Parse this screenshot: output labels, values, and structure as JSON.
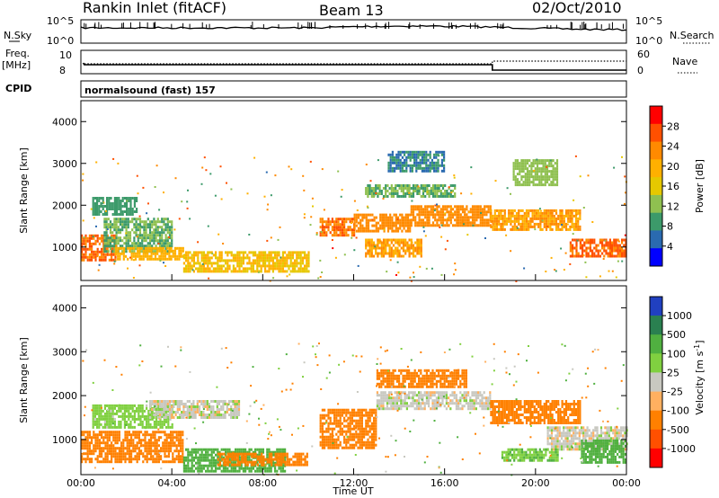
{
  "header": {
    "station": "Rankin Inlet (fitACF)",
    "beam": "Beam 13",
    "date": "02/Oct/2010"
  },
  "strip": {
    "nsky_label": "N.Sky",
    "nsky_ticks": [
      "10^5",
      "10^0"
    ],
    "nsearch_label": "N.Search",
    "nsearch_ticks": [
      "10^5",
      "10^0"
    ],
    "freq_label": "Freq.",
    "freq_unit": "[MHz]",
    "freq_ticks": [
      "10",
      "8"
    ],
    "nave_label": "Nave",
    "nave_ticks": [
      "60",
      "0"
    ],
    "cpid_label": "CPID",
    "cpid_value": "normalsound (fast) 157"
  },
  "chart_data": [
    {
      "type": "heatmap",
      "panel": "power",
      "ylabel": "Slant Range [km]",
      "xlabel": "",
      "colorbar_label": "Power [dB]",
      "ylim": [
        200,
        4500
      ],
      "yticks": [
        "1000",
        "2000",
        "3000",
        "4000"
      ],
      "colorbar_ticks": [
        "28",
        "24",
        "20",
        "16",
        "12",
        "8",
        "4"
      ],
      "colorscale": [
        "#ff0000",
        "#ff5000",
        "#ff8a00",
        "#ffb000",
        "#e6c800",
        "#8fc050",
        "#3c9a6a",
        "#2a6ab0",
        "#0000ff"
      ],
      "bands": [
        {
          "t": [
            0.0,
            1.5
          ],
          "r": [
            700,
            1300
          ],
          "level": 26
        },
        {
          "t": [
            1.0,
            4.0
          ],
          "r": [
            900,
            1700
          ],
          "level": 10
        },
        {
          "t": [
            1.5,
            4.5
          ],
          "r": [
            700,
            1000
          ],
          "level": 20
        },
        {
          "t": [
            4.5,
            10.0
          ],
          "r": [
            400,
            900
          ],
          "level": 18
        },
        {
          "t": [
            0.5,
            2.5
          ],
          "r": [
            1800,
            2200
          ],
          "level": 8
        },
        {
          "t": [
            10.5,
            12.0
          ],
          "r": [
            1300,
            1700
          ],
          "level": 26
        },
        {
          "t": [
            12.0,
            14.5
          ],
          "r": [
            1400,
            1800
          ],
          "level": 24
        },
        {
          "t": [
            12.5,
            15.0
          ],
          "r": [
            800,
            1200
          ],
          "level": 22
        },
        {
          "t": [
            14.5,
            18.0
          ],
          "r": [
            1500,
            2000
          ],
          "level": 24
        },
        {
          "t": [
            12.5,
            16.5
          ],
          "r": [
            2200,
            2500
          ],
          "level": 10
        },
        {
          "t": [
            18.0,
            22.0
          ],
          "r": [
            1400,
            1900
          ],
          "level": 22
        },
        {
          "t": [
            21.5,
            24.0
          ],
          "r": [
            800,
            1200
          ],
          "level": 27
        },
        {
          "t": [
            19.0,
            21.0
          ],
          "r": [
            2500,
            3100
          ],
          "level": 12
        },
        {
          "t": [
            13.5,
            16.0
          ],
          "r": [
            2800,
            3300
          ],
          "level": 6
        }
      ]
    },
    {
      "type": "heatmap",
      "panel": "velocity",
      "ylabel": "Slant Range [km]",
      "xlabel": "Time UT",
      "colorbar_label": "Velocity [m s",
      "colorbar_label_sup": "-1",
      "colorbar_label_end": "]",
      "ylim": [
        200,
        4500
      ],
      "yticks": [
        "1000",
        "2000",
        "3000",
        "4000"
      ],
      "colorbar_ticks": [
        "1000",
        "500",
        "100",
        "25",
        "-25",
        "-100",
        "-500",
        "-1000"
      ],
      "colorscale": [
        "#2040c0",
        "#2a8050",
        "#50b040",
        "#80d040",
        "#c8c8c0",
        "#ffb060",
        "#ff8000",
        "#ff5000",
        "#ff0000"
      ],
      "bands": [
        {
          "t": [
            0.5,
            4.0
          ],
          "r": [
            1300,
            1800
          ],
          "level": 60
        },
        {
          "t": [
            0.0,
            4.5
          ],
          "r": [
            500,
            1200
          ],
          "level": -300
        },
        {
          "t": [
            3.0,
            7.0
          ],
          "r": [
            1500,
            1900
          ],
          "level": 0
        },
        {
          "t": [
            4.5,
            9.0
          ],
          "r": [
            300,
            800
          ],
          "level": 300
        },
        {
          "t": [
            6.0,
            10.0
          ],
          "r": [
            400,
            700
          ],
          "level": -200
        },
        {
          "t": [
            10.5,
            13.0
          ],
          "r": [
            800,
            1700
          ],
          "level": -300
        },
        {
          "t": [
            13.0,
            18.0
          ],
          "r": [
            1700,
            2100
          ],
          "level": 0
        },
        {
          "t": [
            13.0,
            17.0
          ],
          "r": [
            2200,
            2600
          ],
          "level": -400
        },
        {
          "t": [
            18.0,
            22.0
          ],
          "r": [
            1400,
            1900
          ],
          "level": -150
        },
        {
          "t": [
            20.5,
            24.0
          ],
          "r": [
            800,
            1300
          ],
          "level": 0
        },
        {
          "t": [
            22.0,
            24.0
          ],
          "r": [
            500,
            1000
          ],
          "level": 150
        },
        {
          "t": [
            18.5,
            21.0
          ],
          "r": [
            500,
            800
          ],
          "level": 80
        }
      ]
    }
  ],
  "time_axis": {
    "label": "Time UT",
    "ticks": [
      "00:00",
      "04:00",
      "08:00",
      "12:00",
      "16:00",
      "20:00",
      "00:00"
    ],
    "range_hours": [
      0,
      24
    ]
  }
}
